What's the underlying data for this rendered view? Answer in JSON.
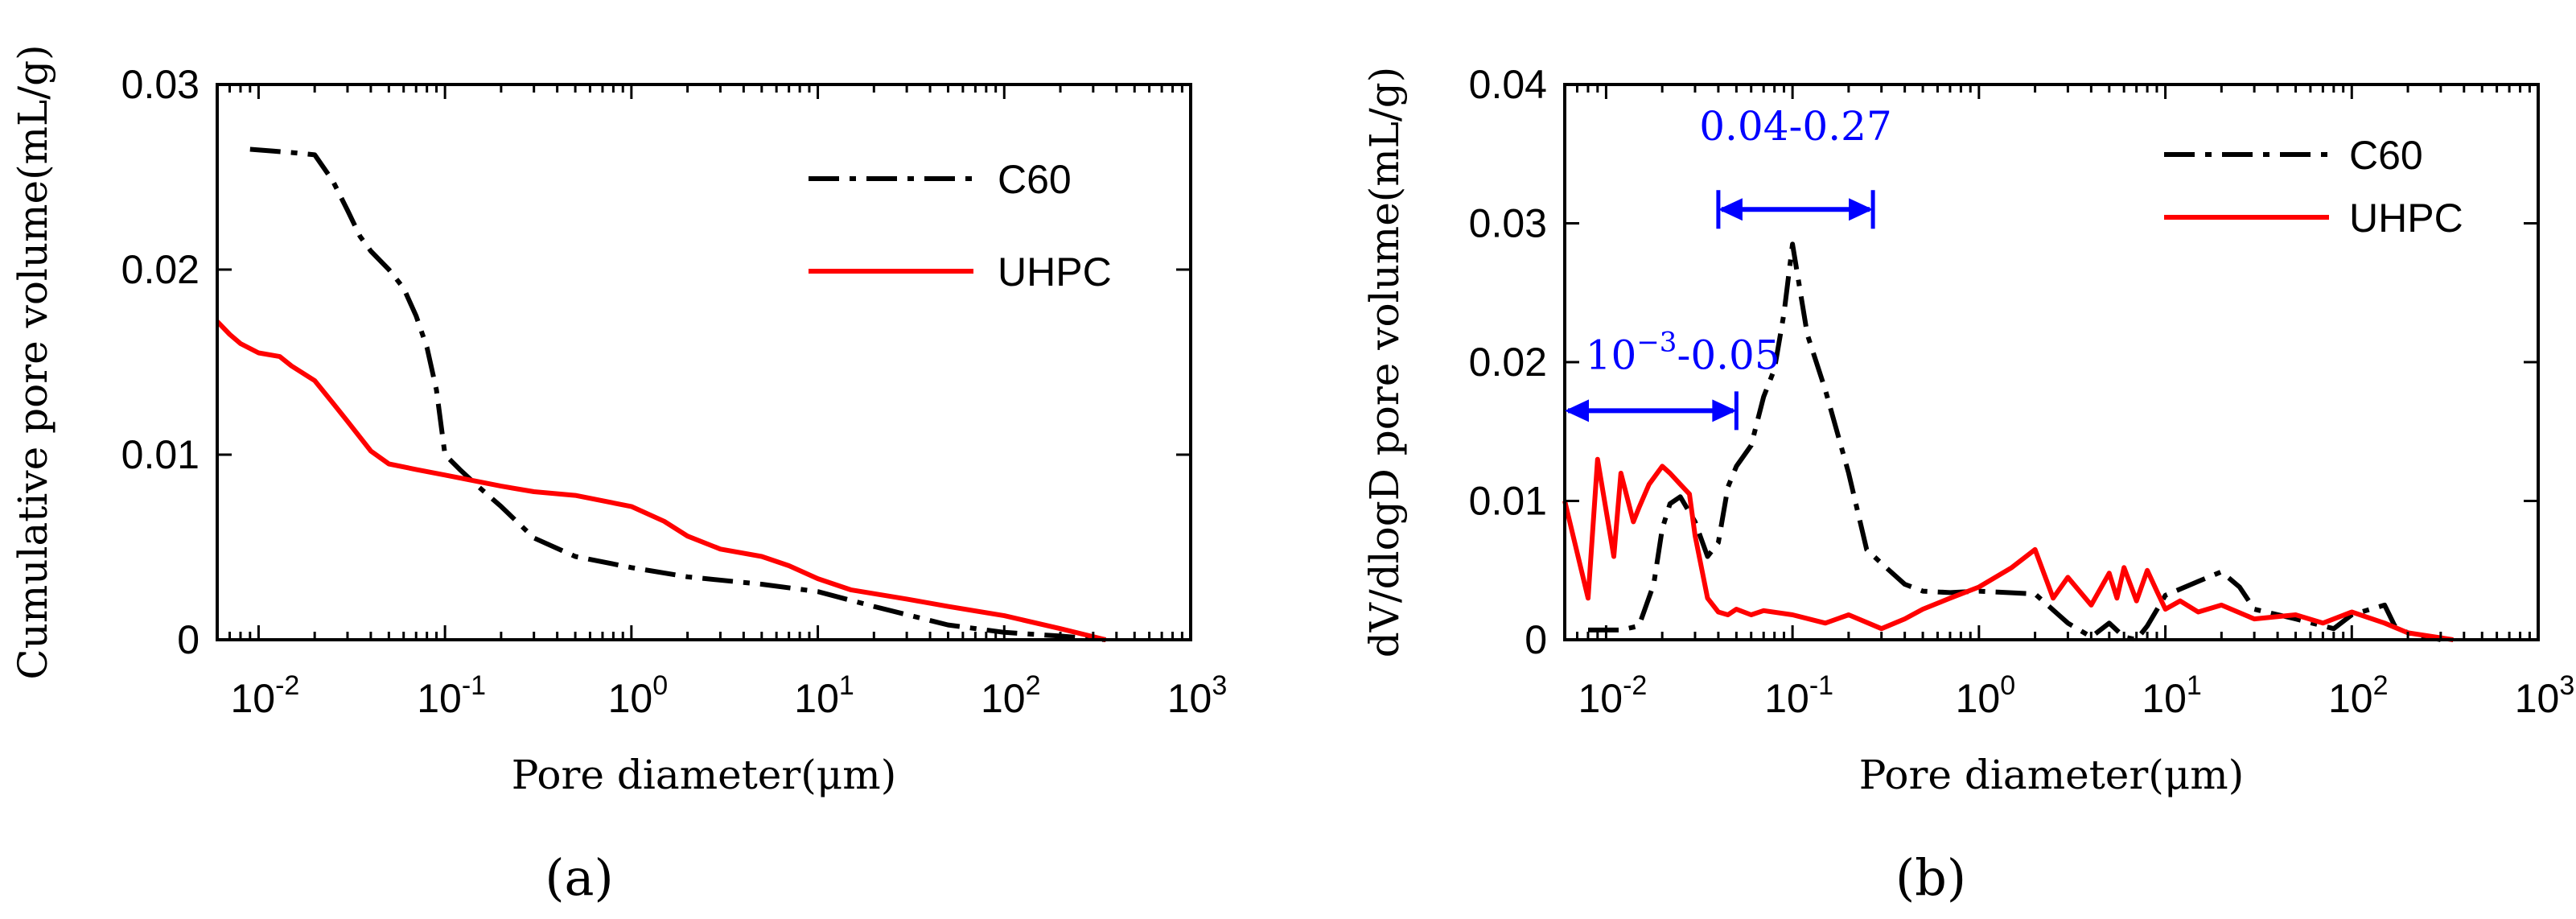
{
  "colors": {
    "c60": "#000000",
    "uhpc": "#ff0000",
    "annotation": "#0000ff",
    "axis": "#000000"
  },
  "chart_data": [
    {
      "type": "line",
      "panel_label": "(a)",
      "xscale": "log",
      "xlim": [
        0.006,
        1000
      ],
      "ylim": [
        0,
        0.03
      ],
      "xlabel": "Pore diameter(μm)",
      "ylabel": "Cumulative pore volume(mL/g)",
      "x_tick_labels": [
        {
          "base": "10",
          "exp": "-2",
          "value": 0.01
        },
        {
          "base": "10",
          "exp": "-1",
          "value": 0.1
        },
        {
          "base": "10",
          "exp": "0",
          "value": 1
        },
        {
          "base": "10",
          "exp": "1",
          "value": 10
        },
        {
          "base": "10",
          "exp": "2",
          "value": 100
        },
        {
          "base": "10",
          "exp": "3",
          "value": 1000
        }
      ],
      "y_ticks": [
        0,
        0.01,
        0.02,
        0.03
      ],
      "y_tick_labels": [
        "0",
        "0.01",
        "0.02",
        "0.03"
      ],
      "legend": {
        "position": "top-right",
        "entries": [
          "C60",
          "UHPC"
        ]
      },
      "series": [
        {
          "name": "C60",
          "style": "dash-dot",
          "color": "#000000",
          "x": [
            0.009,
            0.012,
            0.016,
            0.02,
            0.025,
            0.03,
            0.035,
            0.04,
            0.05,
            0.06,
            0.07,
            0.08,
            0.09,
            0.1,
            0.12,
            0.15,
            0.2,
            0.3,
            0.5,
            1,
            2,
            5,
            10,
            20,
            50,
            100,
            200,
            350
          ],
          "values": [
            0.0265,
            0.0264,
            0.0263,
            0.0262,
            0.0248,
            0.0232,
            0.0218,
            0.021,
            0.02,
            0.019,
            0.0175,
            0.0158,
            0.0135,
            0.01,
            0.0092,
            0.0083,
            0.0072,
            0.0055,
            0.0045,
            0.0039,
            0.0034,
            0.003,
            0.0026,
            0.0018,
            0.0008,
            0.0004,
            0.0002,
            0.0
          ]
        },
        {
          "name": "UHPC",
          "style": "solid",
          "color": "#ff0000",
          "x": [
            0.006,
            0.007,
            0.008,
            0.01,
            0.013,
            0.015,
            0.02,
            0.025,
            0.03,
            0.04,
            0.05,
            0.07,
            0.1,
            0.2,
            0.3,
            0.5,
            1,
            1.5,
            2,
            3,
            5,
            7,
            10,
            15,
            30,
            50,
            100,
            200,
            350
          ],
          "values": [
            0.0172,
            0.0165,
            0.016,
            0.0155,
            0.0153,
            0.0148,
            0.014,
            0.0128,
            0.0118,
            0.0102,
            0.0095,
            0.0092,
            0.0089,
            0.0083,
            0.008,
            0.0078,
            0.0072,
            0.0064,
            0.0056,
            0.0049,
            0.0045,
            0.004,
            0.0033,
            0.0027,
            0.0022,
            0.0018,
            0.0013,
            0.0006,
            0.0
          ]
        }
      ]
    },
    {
      "type": "line",
      "panel_label": "(b)",
      "xscale": "log",
      "xlim": [
        0.006,
        1000
      ],
      "ylim": [
        0,
        0.04
      ],
      "xlabel": "Pore diameter(μm)",
      "ylabel": "dV/dlogD pore volume(mL/g)",
      "x_tick_labels": [
        {
          "base": "10",
          "exp": "-2",
          "value": 0.01
        },
        {
          "base": "10",
          "exp": "-1",
          "value": 0.1
        },
        {
          "base": "10",
          "exp": "0",
          "value": 1
        },
        {
          "base": "10",
          "exp": "1",
          "value": 10
        },
        {
          "base": "10",
          "exp": "2",
          "value": 100
        },
        {
          "base": "10",
          "exp": "3",
          "value": 1000
        }
      ],
      "y_ticks": [
        0,
        0.01,
        0.02,
        0.03,
        0.04
      ],
      "y_tick_labels": [
        "0",
        "0.01",
        "0.02",
        "0.03",
        "0.04"
      ],
      "legend": {
        "position": "top-right",
        "entries": [
          "C60",
          "UHPC"
        ]
      },
      "annotations": [
        {
          "text": "0.04-0.27",
          "x_from": 0.04,
          "x_to": 0.27,
          "y": 0.031,
          "label_y": 0.036
        },
        {
          "text_base": "10",
          "text_exp": "−3",
          "text_rest": "-0.05",
          "x_from": 0.006,
          "x_to": 0.05,
          "y": 0.0165,
          "label_y": 0.0195
        }
      ],
      "series": [
        {
          "name": "C60",
          "style": "dash-dot",
          "color": "#000000",
          "x": [
            0.008,
            0.01,
            0.012,
            0.015,
            0.018,
            0.02,
            0.022,
            0.025,
            0.03,
            0.035,
            0.04,
            0.045,
            0.05,
            0.06,
            0.07,
            0.08,
            0.09,
            0.1,
            0.12,
            0.15,
            0.2,
            0.25,
            0.3,
            0.4,
            0.5,
            0.7,
            1,
            2,
            3,
            4,
            5,
            6,
            7,
            8,
            10,
            15,
            20,
            25,
            30,
            50,
            80,
            100,
            150,
            170,
            200,
            300
          ],
          "values": [
            0.0007,
            0.0007,
            0.0007,
            0.001,
            0.004,
            0.008,
            0.0098,
            0.0103,
            0.0085,
            0.006,
            0.007,
            0.011,
            0.0125,
            0.014,
            0.0175,
            0.0195,
            0.0235,
            0.0285,
            0.022,
            0.018,
            0.012,
            0.0065,
            0.0055,
            0.004,
            0.0035,
            0.0034,
            0.0035,
            0.0033,
            0.0012,
            0.0002,
            0.0012,
            0.0002,
            0.0,
            0.001,
            0.0032,
            0.0042,
            0.0049,
            0.0038,
            0.0022,
            0.0015,
            0.0008,
            0.0018,
            0.0025,
            0.001,
            0.0005,
            0.0
          ]
        },
        {
          "name": "UHPC",
          "style": "solid",
          "color": "#ff0000",
          "x": [
            0.006,
            0.008,
            0.009,
            0.011,
            0.012,
            0.014,
            0.015,
            0.017,
            0.02,
            0.022,
            0.025,
            0.028,
            0.03,
            0.035,
            0.04,
            0.045,
            0.05,
            0.06,
            0.07,
            0.1,
            0.15,
            0.2,
            0.3,
            0.4,
            0.5,
            0.7,
            1,
            1.5,
            2,
            2.5,
            3,
            4,
            5,
            5.5,
            6,
            7,
            8,
            9,
            10,
            12,
            15,
            20,
            30,
            50,
            70,
            100,
            150,
            200,
            350
          ],
          "values": [
            0.01,
            0.003,
            0.013,
            0.006,
            0.012,
            0.0085,
            0.0095,
            0.0112,
            0.0125,
            0.012,
            0.0112,
            0.0105,
            0.0075,
            0.003,
            0.002,
            0.0018,
            0.0022,
            0.0018,
            0.0021,
            0.0018,
            0.0012,
            0.0018,
            0.0008,
            0.0015,
            0.0022,
            0.003,
            0.0038,
            0.0052,
            0.0065,
            0.003,
            0.0045,
            0.0025,
            0.0048,
            0.003,
            0.0052,
            0.0028,
            0.005,
            0.0035,
            0.0022,
            0.0028,
            0.002,
            0.0025,
            0.0015,
            0.0018,
            0.0012,
            0.002,
            0.0012,
            0.0005,
            0.0
          ]
        }
      ]
    }
  ]
}
